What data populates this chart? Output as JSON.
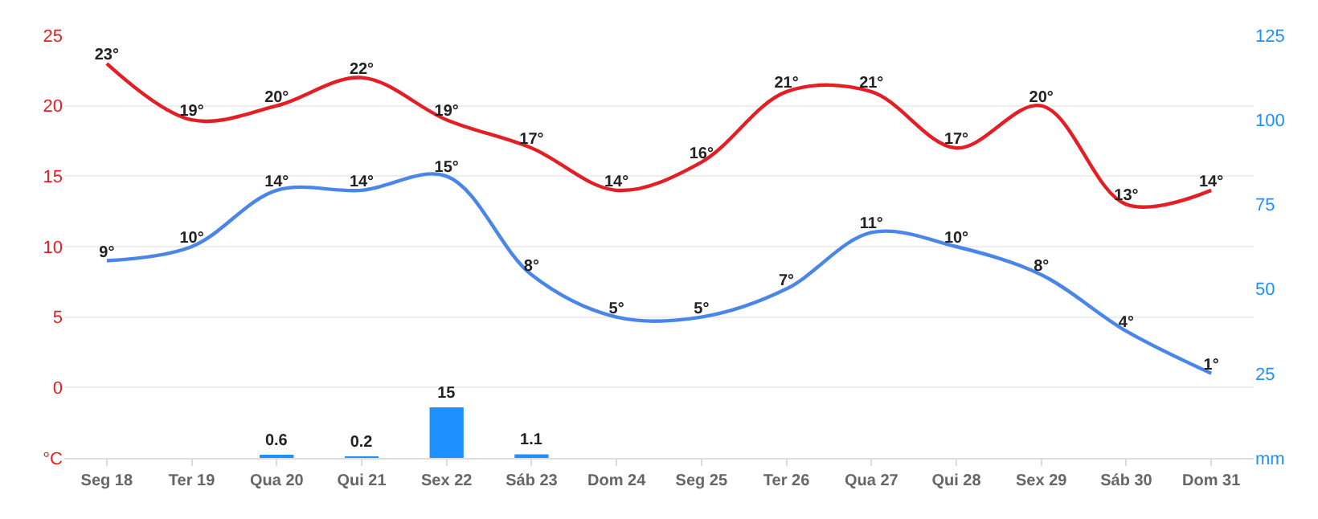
{
  "chart_data": {
    "type": "line",
    "categories": [
      "Seg 18",
      "Ter 19",
      "Qua 20",
      "Qui 21",
      "Sex 22",
      "Sáb 23",
      "Dom 24",
      "Seg 25",
      "Ter 26",
      "Qua 27",
      "Qui 28",
      "Sex 29",
      "Sáb 30",
      "Dom 31"
    ],
    "ylim": [
      -5,
      25
    ],
    "yticks": [
      {
        "value": -5,
        "label": "°C"
      },
      0,
      5,
      10,
      15,
      20,
      25
    ],
    "y2lim": [
      0,
      125
    ],
    "y2ticks": [
      {
        "value": 0,
        "label": "mm"
      },
      25,
      50,
      75,
      100,
      125
    ],
    "grid": "y",
    "series": [
      {
        "color": "#e31e24",
        "values": [
          23,
          19,
          20,
          22,
          19,
          17,
          14,
          16,
          21,
          21,
          17,
          20,
          13,
          14
        ],
        "value_labels": [
          "23°",
          "19°",
          "20°",
          "22°",
          "19°",
          "17°",
          "14°",
          "16°",
          "21°",
          "21°",
          "17°",
          "20°",
          "13°",
          "14°"
        ]
      },
      {
        "color": "#4a86e8",
        "values": [
          9,
          10,
          14,
          14,
          15,
          8,
          5,
          5,
          7,
          11,
          10,
          8,
          4,
          1
        ],
        "value_labels": [
          "9°",
          "10°",
          "14°",
          "14°",
          "15°",
          "8°",
          "5°",
          "5°",
          "7°",
          "11°",
          "10°",
          "8°",
          "4°",
          "1°"
        ]
      },
      {
        "type": "bar",
        "axis": "y2",
        "color": "#1e90ff",
        "values": [
          null,
          null,
          0.6,
          0.2,
          15,
          1.1,
          null,
          null,
          null,
          null,
          null,
          null,
          null,
          null
        ],
        "value_labels": [
          null,
          null,
          "0.6",
          "0.2",
          "15",
          "1.1",
          null,
          null,
          null,
          null,
          null,
          null,
          null,
          null
        ]
      }
    ]
  }
}
